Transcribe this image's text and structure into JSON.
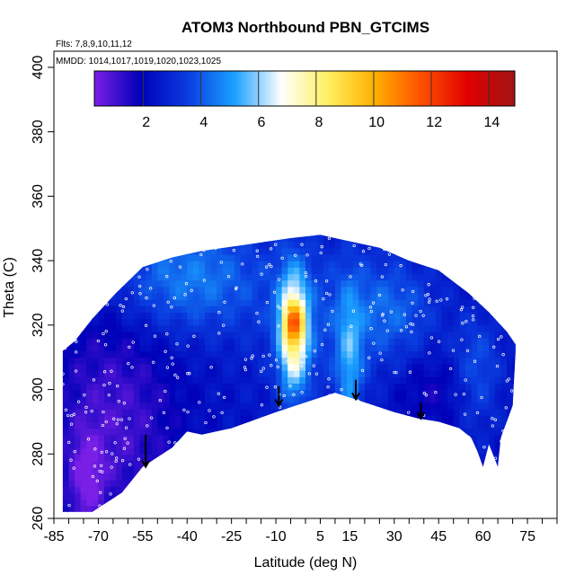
{
  "chart_data": {
    "type": "heatmap",
    "title": "ATOM3 Northbound PBN_GTCIMS",
    "flights_note": "Flts: 7,8,9,10,11,12",
    "dates_note": "MMDD: 1014,1017,1019,1020,1023,1025",
    "xlabel": "Latitude (deg N)",
    "ylabel": "Theta (C)",
    "xlim": [
      -85,
      85
    ],
    "ylim": [
      260,
      405
    ],
    "x_ticks": [
      -85,
      -70,
      -55,
      -40,
      -25,
      -10,
      5,
      15,
      30,
      45,
      60,
      75
    ],
    "y_ticks": [
      260,
      280,
      300,
      320,
      340,
      360,
      380,
      400
    ],
    "colorbar": {
      "ticks": [
        2,
        4,
        6,
        8,
        10,
        12,
        14
      ],
      "range": [
        0.2,
        14.8
      ],
      "colors": [
        "#7a1fe6",
        "#0000b8",
        "#0a3de0",
        "#1aa0ff",
        "#ffffff",
        "#fff060",
        "#ffb000",
        "#ff5000",
        "#e00000",
        "#a01414"
      ]
    },
    "envelope": {
      "bottom_boundary": [
        [
          -82,
          262
        ],
        [
          -72,
          262
        ],
        [
          -62,
          268
        ],
        [
          -55,
          276
        ],
        [
          -45,
          282
        ],
        [
          -40,
          287
        ],
        [
          -35,
          286
        ],
        [
          -25,
          288
        ],
        [
          -10,
          293
        ],
        [
          0,
          296
        ],
        [
          10,
          299
        ],
        [
          20,
          296
        ],
        [
          30,
          293
        ],
        [
          38,
          291
        ],
        [
          45,
          290
        ],
        [
          52,
          288
        ],
        [
          56,
          285
        ],
        [
          58,
          281
        ],
        [
          60,
          276
        ],
        [
          62,
          283
        ],
        [
          65,
          276
        ],
        [
          66,
          285
        ],
        [
          70,
          295
        ],
        [
          71,
          312
        ]
      ],
      "top_boundary": [
        [
          -82,
          312
        ],
        [
          -78,
          315
        ],
        [
          -72,
          322
        ],
        [
          -64,
          330
        ],
        [
          -55,
          338
        ],
        [
          -45,
          341
        ],
        [
          -35,
          343
        ],
        [
          -20,
          345
        ],
        [
          -5,
          347
        ],
        [
          5,
          348
        ],
        [
          15,
          346
        ],
        [
          25,
          344
        ],
        [
          35,
          340
        ],
        [
          45,
          337
        ],
        [
          55,
          330
        ],
        [
          62,
          324
        ],
        [
          68,
          318
        ],
        [
          71,
          314
        ]
      ]
    },
    "annotations": [
      {
        "type": "arrow",
        "latitude": -54,
        "theta_top": 286,
        "theta_tip": 276
      },
      {
        "type": "arrow",
        "latitude": -9,
        "theta_top": 301,
        "theta_tip": 295
      },
      {
        "type": "arrow",
        "latitude": 17,
        "theta_top": 303,
        "theta_tip": 297
      },
      {
        "type": "arrow",
        "latitude": 39,
        "theta_top": 296,
        "theta_tip": 291
      }
    ]
  }
}
